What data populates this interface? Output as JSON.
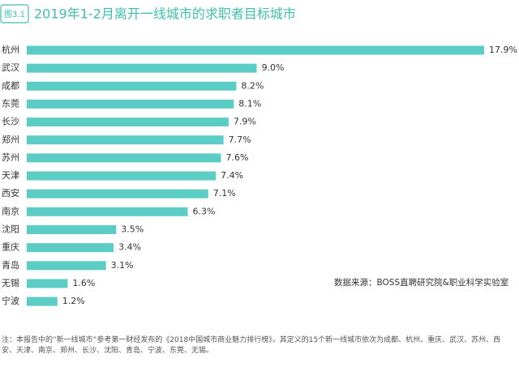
{
  "chart_data": {
    "type": "bar",
    "orientation": "horizontal",
    "badge": "图3.1",
    "title": "2019年1-2月离开一线城市的求职者目标城市",
    "categories": [
      "杭州",
      "武汉",
      "成都",
      "东莞",
      "长沙",
      "郑州",
      "苏州",
      "天津",
      "西安",
      "南京",
      "沈阳",
      "重庆",
      "青岛",
      "无锡",
      "宁波"
    ],
    "values": [
      17.9,
      9.0,
      8.2,
      8.1,
      7.9,
      7.7,
      7.6,
      7.4,
      7.1,
      6.3,
      3.5,
      3.4,
      3.1,
      1.6,
      1.2
    ],
    "value_labels": [
      "17.9%",
      "9.0%",
      "8.2%",
      "8.1%",
      "7.9%",
      "7.7%",
      "7.6%",
      "7.4%",
      "7.1%",
      "6.3%",
      "3.5%",
      "3.4%",
      "3.1%",
      "1.6%",
      "1.2%"
    ],
    "color": "#5bcdc4",
    "source": "数据来源：BOSS直聘研究院&职业科学实验室",
    "note": "注：本报告中的“新一线城市”参考第一财经发布的《2018中国城市商业魅力排行榜》，其定义的15个新一线城市依次为成都、杭州、重庆、武汉、苏州、西安、天津、南京、郑州、长沙、沈阳、青岛、宁波、东莞、无锡。"
  }
}
